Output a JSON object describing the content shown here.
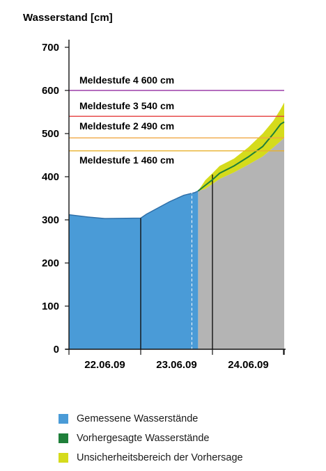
{
  "chart_data": {
    "type": "area",
    "ylabel": "Wasserstand [cm]",
    "ylim": [
      0,
      700
    ],
    "yticks": [
      "0",
      "100",
      "200",
      "300",
      "400",
      "500",
      "600",
      "700"
    ],
    "xlim": [
      0,
      3
    ],
    "xtick_labels": [
      {
        "x": 0.5,
        "label": "22.06.09"
      },
      {
        "x": 1.5,
        "label": "23.06.09"
      },
      {
        "x": 2.5,
        "label": "24.06.09"
      }
    ],
    "day_boundaries": [
      1,
      2
    ],
    "measured": {
      "name": "Gemessene Wasserstände",
      "color": "#4a9bd7",
      "points": [
        [
          0.0,
          312
        ],
        [
          0.3,
          306
        ],
        [
          0.5,
          303
        ],
        [
          1.0,
          304
        ],
        [
          1.08,
          313
        ],
        [
          1.4,
          342
        ],
        [
          1.6,
          357
        ],
        [
          1.75,
          363
        ],
        [
          1.8,
          367
        ]
      ]
    },
    "forecast_start": 1.8,
    "forecast": {
      "name": "Vorhergesagte Wasserstände",
      "color": "#1f7f3a",
      "points": [
        [
          1.8,
          367
        ],
        [
          1.9,
          380
        ],
        [
          2.0,
          393
        ],
        [
          2.1,
          408
        ],
        [
          2.3,
          425
        ],
        [
          2.5,
          446
        ],
        [
          2.7,
          470
        ],
        [
          2.85,
          500
        ],
        [
          2.95,
          522
        ],
        [
          3.0,
          527
        ]
      ]
    },
    "forecast_band": {
      "name": "Unsicherheitsbereich der Vorhersage",
      "color": "#d5db1c",
      "lower": [
        [
          1.8,
          367
        ],
        [
          1.9,
          372
        ],
        [
          2.0,
          383
        ],
        [
          2.1,
          395
        ],
        [
          2.3,
          410
        ],
        [
          2.5,
          428
        ],
        [
          2.7,
          447
        ],
        [
          2.85,
          468
        ],
        [
          3.0,
          490
        ]
      ],
      "upper": [
        [
          1.8,
          367
        ],
        [
          1.9,
          392
        ],
        [
          2.0,
          408
        ],
        [
          2.1,
          425
        ],
        [
          2.3,
          442
        ],
        [
          2.5,
          468
        ],
        [
          2.7,
          500
        ],
        [
          2.85,
          530
        ],
        [
          2.95,
          557
        ],
        [
          3.0,
          572
        ]
      ]
    },
    "forecast_area_color": "#b4b4b4",
    "levels": [
      {
        "name": "Meldestufe 4",
        "value_label": "600 cm",
        "value": 600,
        "color": "#9b3fa8"
      },
      {
        "name": "Meldestufe 3",
        "value_label": "540 cm",
        "value": 540,
        "color": "#e53c3c"
      },
      {
        "name": "Meldestufe 2",
        "value_label": "490 cm",
        "value": 490,
        "color": "#f1a745"
      },
      {
        "name": "Meldestufe 1",
        "value_label": "460 cm",
        "value": 460,
        "color": "#e8b12c"
      }
    ],
    "legend": [
      {
        "label": "Gemessene Wasserstände",
        "color": "#4a9bd7"
      },
      {
        "label": "Vorhergesagte Wasserstände",
        "color": "#1f7f3a"
      },
      {
        "label": "Unsicherheitsbereich der Vorhersage",
        "color": "#d5db1c"
      }
    ]
  }
}
